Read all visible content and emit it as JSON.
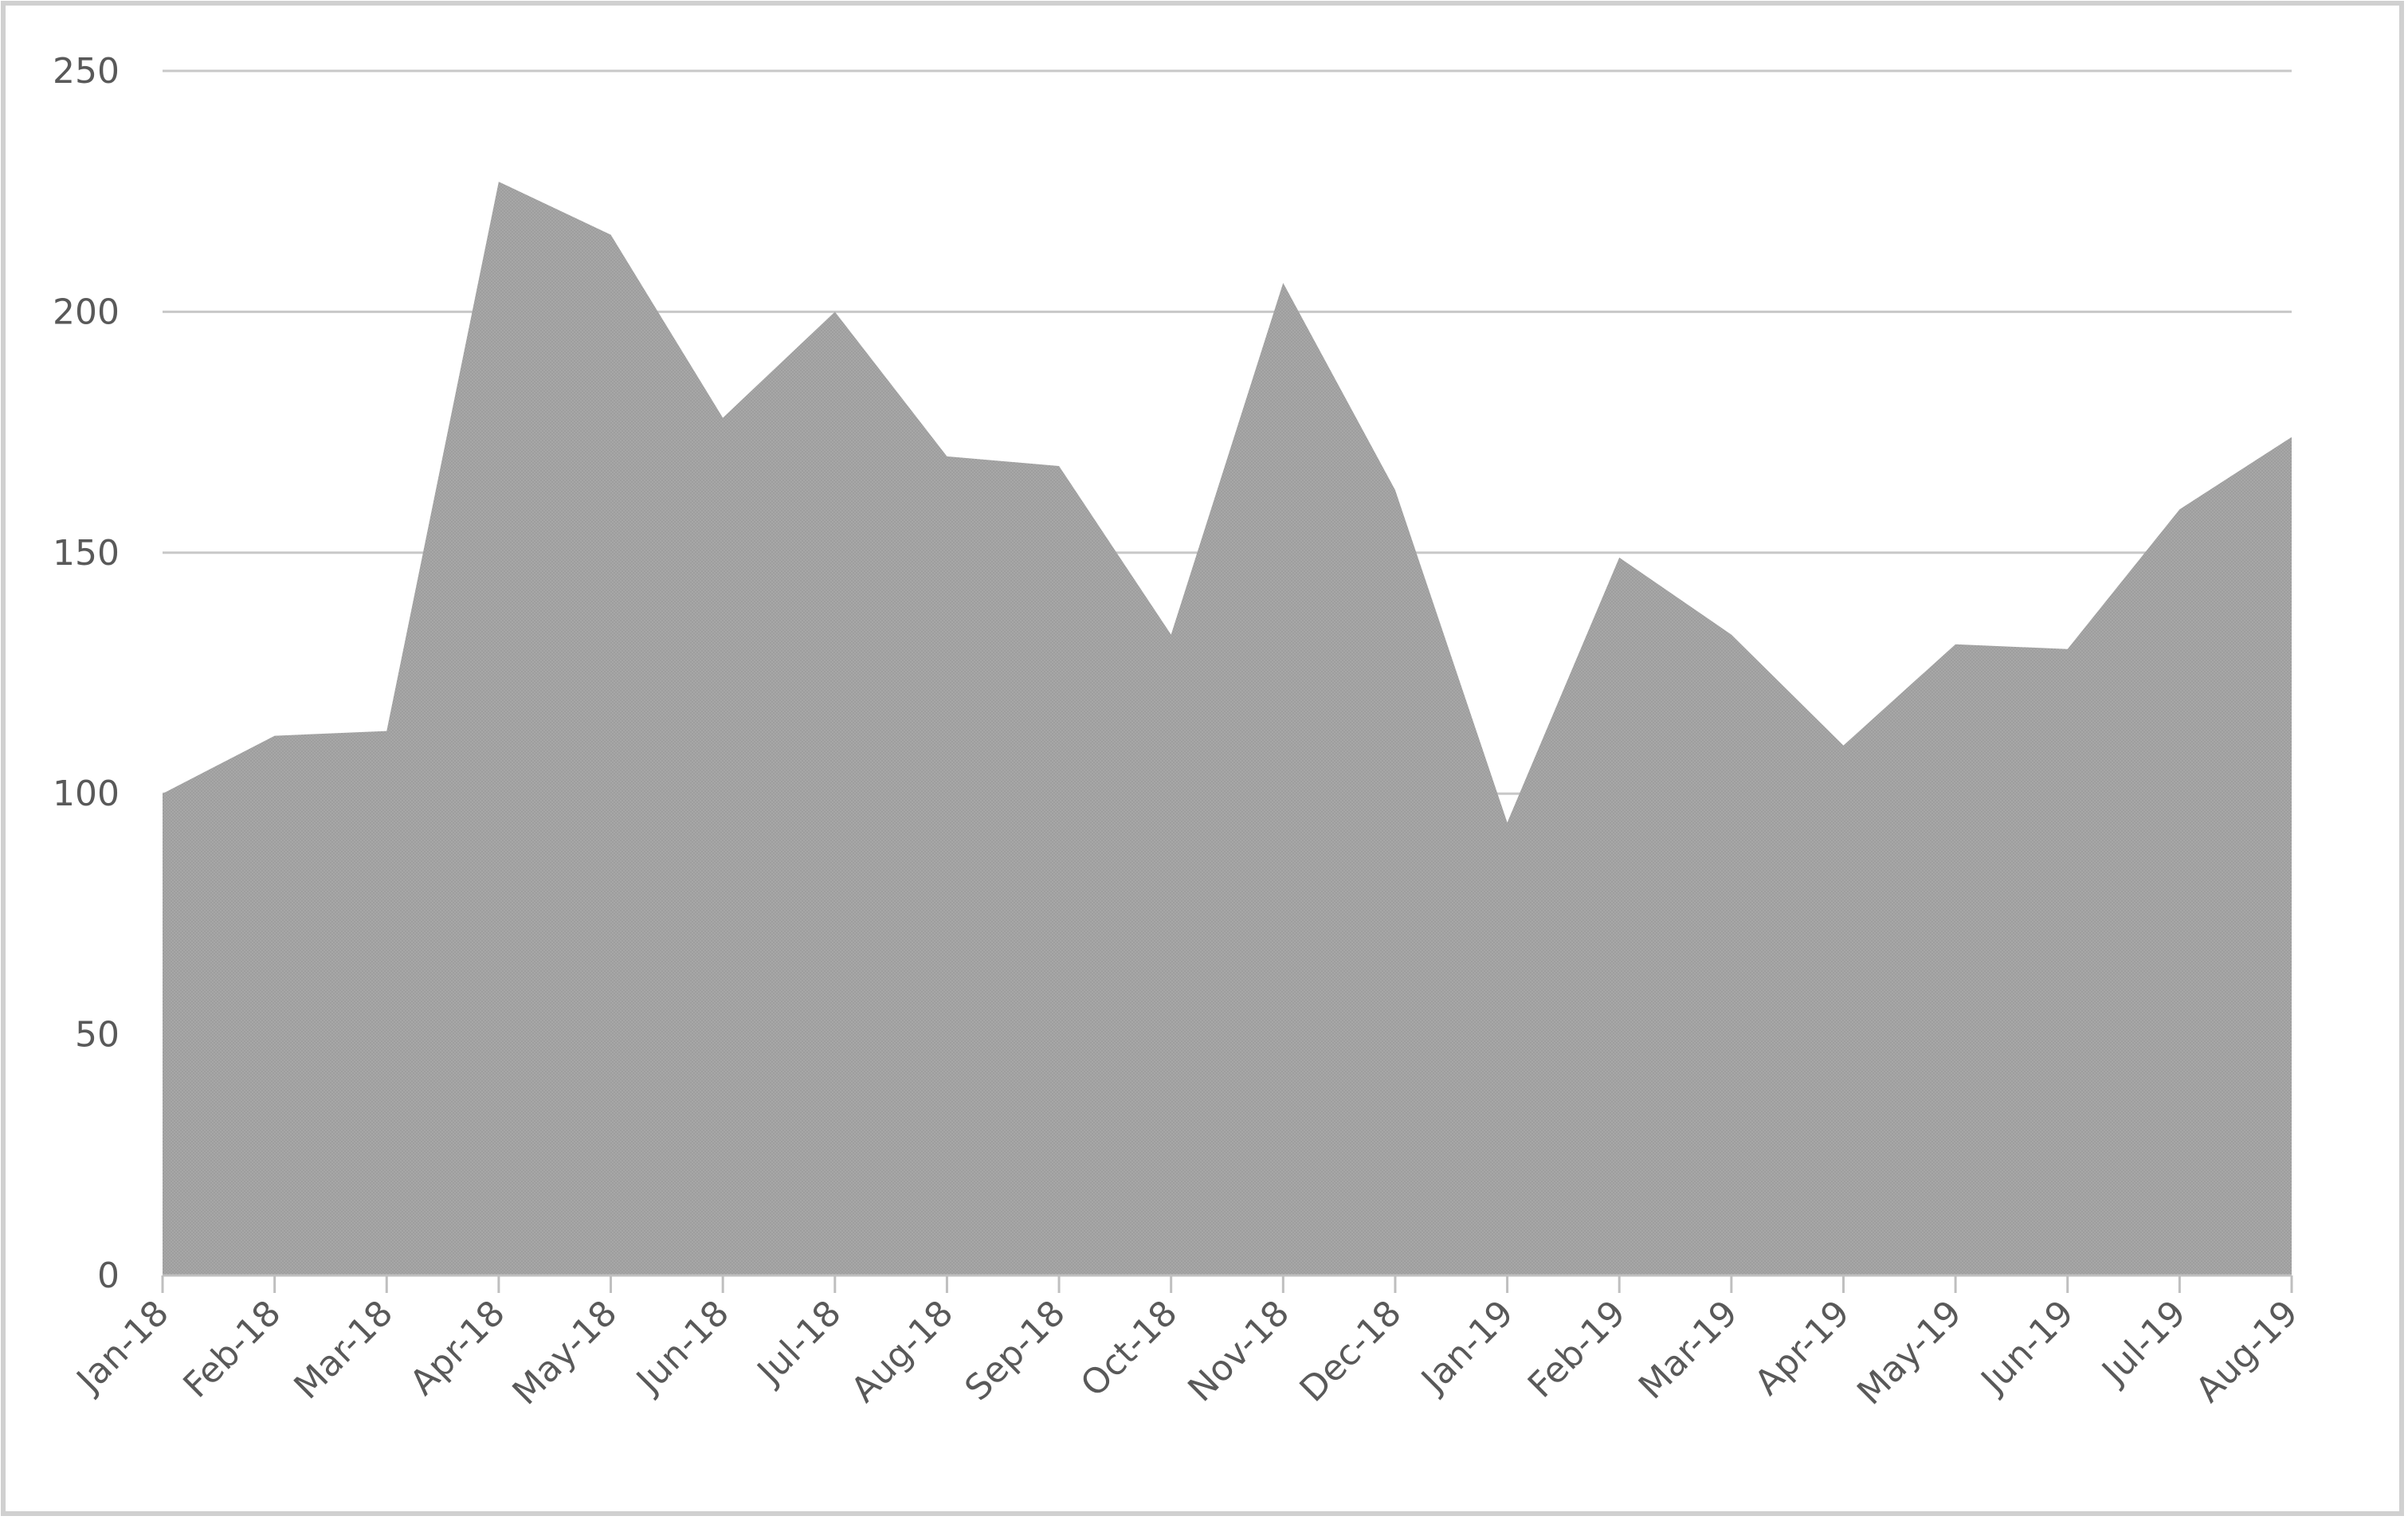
{
  "chart_data": {
    "type": "area",
    "title": "",
    "xlabel": "",
    "ylabel": "",
    "categories": [
      "Jan-18",
      "Feb-18",
      "Mar-18",
      "Apr-18",
      "May-18",
      "Jun-18",
      "Jul-18",
      "Aug-18",
      "Sep-18",
      "Oct-18",
      "Nov-18",
      "Dec-18",
      "Jan-19",
      "Feb-19",
      "Mar-19",
      "Apr-19",
      "May-19",
      "Jun-19",
      "Jul-19",
      "Aug-19"
    ],
    "values": [
      100,
      112,
      113,
      227,
      216,
      178,
      200,
      170,
      168,
      133,
      206,
      163,
      94,
      149,
      133,
      110,
      131,
      130,
      159,
      174
    ],
    "ylim": [
      0,
      250
    ],
    "yticks": [
      0,
      50,
      100,
      150,
      200,
      250
    ],
    "grid": true,
    "legend": "none",
    "colors": {
      "area_fill": "#a6a6a6",
      "gridline": "#c8c8c8",
      "axis": "#bfbfbf",
      "tick_text": "#595959",
      "frame_shadow": "#d0d0d0"
    }
  }
}
